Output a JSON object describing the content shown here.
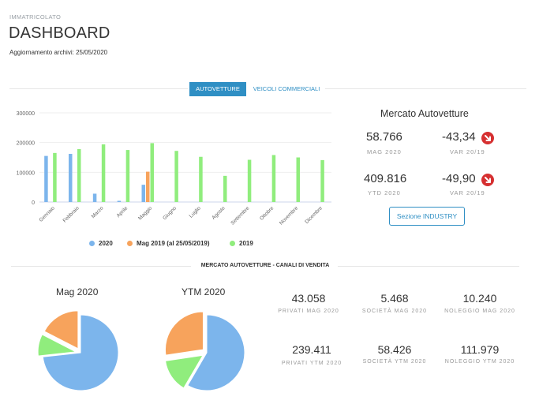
{
  "header": {
    "eyebrow": "IMMATRICOLATO",
    "title": "DASHBOARD",
    "update_label": "Aggiornamento archivi:",
    "update_date": "25/05/2020"
  },
  "tabs": [
    {
      "label": "AUTOVETTURE",
      "active": true
    },
    {
      "label": "VEICOLI COMMERCIALI",
      "active": false
    }
  ],
  "chart_data": {
    "type": "bar",
    "categories": [
      "Gennaio",
      "Febbraio",
      "Marzo",
      "Aprile",
      "Maggio",
      "Giugno",
      "Luglio",
      "Agosto",
      "Settembre",
      "Ottobre",
      "Novembre",
      "Dicembre"
    ],
    "series": [
      {
        "name": "2020",
        "color": "#7cb5ec",
        "values": [
          155000,
          162000,
          28000,
          4000,
          58000,
          null,
          null,
          null,
          null,
          null,
          null,
          null
        ]
      },
      {
        "name": "Mag 2019 (al 25/05/2019)",
        "color": "#f7a35c",
        "values": [
          null,
          null,
          null,
          null,
          102000,
          null,
          null,
          null,
          null,
          null,
          null,
          null
        ]
      },
      {
        "name": "2019",
        "color": "#90ed7d",
        "values": [
          165000,
          178000,
          194000,
          175000,
          198000,
          172000,
          152000,
          88000,
          142000,
          158000,
          150000,
          141000
        ]
      }
    ],
    "y_ticks": [
      "300000",
      "200000",
      "100000",
      "0"
    ],
    "ylim": [
      0,
      300000
    ],
    "legend_position": "bottom"
  },
  "market": {
    "title": "Mercato Autovetture",
    "kpis": [
      {
        "value": "58.766",
        "label": "MAG 2020"
      },
      {
        "value": "-43,34",
        "label": "VAR 20/19",
        "trend": "down"
      },
      {
        "value": "409.816",
        "label": "YTD 2020"
      },
      {
        "value": "-49,90",
        "label": "VAR 20/19",
        "trend": "down"
      }
    ],
    "button_label": "Sezione INDUSTRY"
  },
  "channels": {
    "section_title": "MERCATO AUTOVETTURE - CANALI DI VENDITA",
    "pies": [
      {
        "title": "Mag 2020",
        "slices": [
          {
            "name": "Privati",
            "value": 43058,
            "color": "#7cb5ec"
          },
          {
            "name": "Società",
            "value": 5468,
            "color": "#90ed7d"
          },
          {
            "name": "Noleggio",
            "value": 10240,
            "color": "#f7a35c"
          }
        ]
      },
      {
        "title": "YTM 2020",
        "slices": [
          {
            "name": "Privati",
            "value": 239411,
            "color": "#7cb5ec"
          },
          {
            "name": "Società",
            "value": 58426,
            "color": "#90ed7d"
          },
          {
            "name": "Noleggio",
            "value": 111979,
            "color": "#f7a35c"
          }
        ]
      }
    ],
    "stats": [
      {
        "value": "43.058",
        "label": "PRIVATI MAG 2020"
      },
      {
        "value": "5.468",
        "label": "SOCIETÀ MAG 2020"
      },
      {
        "value": "10.240",
        "label": "NOLEGGIO MAG 2020"
      },
      {
        "value": "239.411",
        "label": "PRIVATI YTM 2020"
      },
      {
        "value": "58.426",
        "label": "SOCIETÀ YTM 2020"
      },
      {
        "value": "111.979",
        "label": "NOLEGGIO YTM 2020"
      }
    ]
  }
}
